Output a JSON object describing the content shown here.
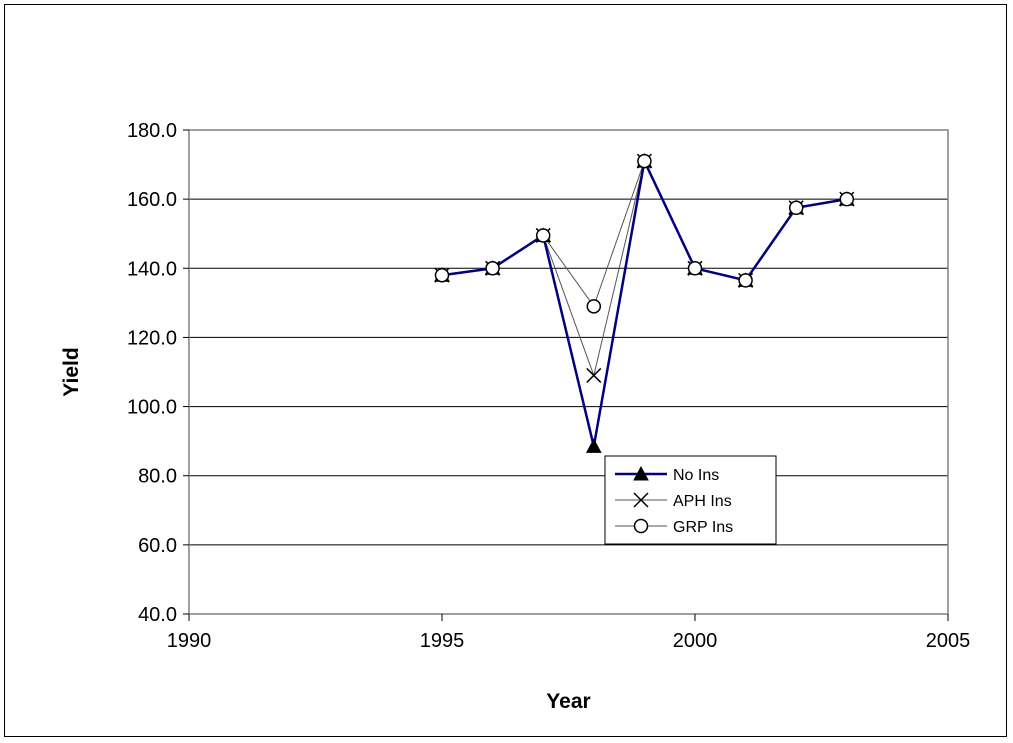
{
  "chart_data": {
    "type": "line",
    "title": "",
    "xlabel": "Year",
    "ylabel": "Yield",
    "xlim": [
      1990,
      2005
    ],
    "ylim": [
      40,
      180
    ],
    "xticks": [
      1990,
      1995,
      2000,
      2005
    ],
    "xtick_labels": [
      "1990",
      "1995",
      "2000",
      "2005"
    ],
    "yticks": [
      40,
      60,
      80,
      100,
      120,
      140,
      160,
      180
    ],
    "ytick_labels": [
      "40.0",
      "60.0",
      "80.0",
      "100.0",
      "120.0",
      "140.0",
      "160.0",
      "180.0"
    ],
    "grid": "horizontal",
    "legend_position": "bottom-center",
    "x": [
      1995,
      1996,
      1997,
      1998,
      1999,
      2000,
      2001,
      2002,
      2003
    ],
    "series": [
      {
        "name": "No Ins",
        "values": [
          138,
          140,
          149.5,
          88.5,
          171,
          140,
          136.5,
          157.5,
          160
        ],
        "color": "#000080",
        "marker": "triangle"
      },
      {
        "name": "APH Ins",
        "values": [
          138,
          140,
          149.5,
          109,
          171,
          140,
          136.5,
          157.5,
          160
        ],
        "color": "#555555",
        "marker": "x"
      },
      {
        "name": "GRP Ins",
        "values": [
          138,
          140,
          149.5,
          129,
          171,
          140,
          136.5,
          157.5,
          160
        ],
        "color": "#555555",
        "marker": "circle"
      }
    ]
  }
}
